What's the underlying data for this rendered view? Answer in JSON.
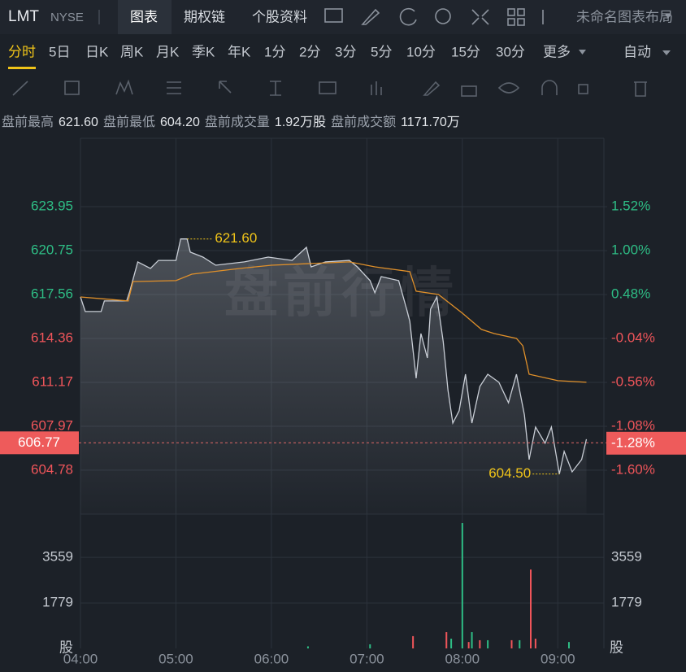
{
  "toolbar": {
    "symbol": "LMT",
    "exchange": "NYSE",
    "tabs": [
      "图表",
      "期权链",
      "个股资料"
    ],
    "layout_name": "未命名图表布局"
  },
  "periods": {
    "items": [
      "分时",
      "5日",
      "日K",
      "周K",
      "月K",
      "季K",
      "年K",
      "1分",
      "2分",
      "3分",
      "5分",
      "10分",
      "15分",
      "30分",
      "更多"
    ],
    "active": 0,
    "mode": "自动"
  },
  "stats": [
    {
      "label": "盘前最高",
      "value": "621.60"
    },
    {
      "label": "盘前最低",
      "value": "604.20"
    },
    {
      "label": "盘前成交量",
      "value": "1.92万股"
    },
    {
      "label": "盘前成交额",
      "value": "1171.70万"
    }
  ],
  "chart_data": {
    "type": "line",
    "watermark": "盘前行情",
    "xlim": [
      "04:00",
      "09:30"
    ],
    "xticks": [
      "04:00",
      "05:00",
      "06:00",
      "07:00",
      "08:00",
      "09:00"
    ],
    "ylim": [
      601.58,
      628.92
    ],
    "yticks": [
      623.95,
      620.75,
      617.56,
      614.36,
      611.17,
      607.97,
      604.78
    ],
    "y2lim": [
      -2.12,
      2.33
    ],
    "y2ticks": [
      {
        "value": 1.52,
        "label": "1.52%"
      },
      {
        "value": 1.0,
        "label": "1.00%"
      },
      {
        "value": 0.48,
        "label": "0.48%"
      },
      {
        "value": -0.04,
        "label": "-0.04%"
      },
      {
        "value": -0.56,
        "label": "-0.56%"
      },
      {
        "value": -1.08,
        "label": "-1.08%"
      },
      {
        "value": -1.6,
        "label": "-1.60%"
      }
    ],
    "up_color": "#2ebd85",
    "down_color": "#f0555a",
    "series": [
      {
        "color": "#c9ced6",
        "x": [
          "04:00",
          "04:03",
          "04:13",
          "04:15",
          "04:29",
          "04:31",
          "04:36",
          "04:44",
          "04:49",
          "05:00",
          "05:03",
          "05:07",
          "05:09",
          "05:17",
          "05:25",
          "05:43",
          "05:58",
          "06:13",
          "06:22",
          "06:25",
          "06:34",
          "06:49",
          "06:54",
          "07:02",
          "07:05",
          "07:09",
          "07:20",
          "07:25",
          "07:27",
          "07:31",
          "07:34",
          "07:38",
          "07:40",
          "07:44",
          "07:48",
          "07:51",
          "07:54",
          "07:58",
          "08:02",
          "08:06",
          "08:11",
          "08:16",
          "08:23",
          "08:29",
          "08:34",
          "08:39",
          "08:42",
          "08:46",
          "08:52",
          "08:56",
          "09:01",
          "09:04",
          "09:09",
          "09:15",
          "09:18"
        ],
        "values": [
          617.38,
          616.32,
          616.32,
          617.09,
          617.09,
          617.8,
          619.93,
          619.45,
          620.04,
          620.04,
          621.6,
          621.6,
          620.64,
          620.28,
          619.69,
          619.93,
          620.28,
          620.04,
          620.99,
          619.57,
          619.93,
          620.04,
          619.57,
          618.57,
          617.68,
          618.86,
          618.57,
          616.49,
          615.61,
          611.47,
          614.72,
          612.94,
          616.49,
          617.38,
          614.13,
          610.58,
          608.21,
          609.1,
          611.76,
          608.21,
          610.87,
          611.76,
          611.17,
          609.69,
          611.76,
          608.8,
          605.55,
          607.92,
          606.74,
          607.92,
          604.5,
          606.14,
          604.66,
          605.55,
          607.03
        ]
      },
      {
        "color": "#e0902a",
        "x": [
          "04:00",
          "04:30",
          "04:33",
          "05:00",
          "05:10",
          "05:40",
          "06:00",
          "06:49",
          "07:05",
          "07:27",
          "07:31",
          "07:45",
          "08:00",
          "08:12",
          "08:20",
          "08:34",
          "08:38",
          "08:42",
          "09:00",
          "09:18"
        ],
        "values": [
          617.38,
          617.09,
          618.5,
          618.57,
          619.04,
          619.45,
          619.69,
          619.93,
          619.57,
          619.22,
          617.8,
          617.56,
          616.2,
          615.02,
          614.72,
          614.36,
          613.83,
          611.76,
          611.29,
          611.17
        ]
      }
    ],
    "last": 606.77,
    "last_change": {
      "value": -1.28,
      "label": "-1.28%"
    },
    "high": {
      "x": "05:03",
      "value": 621.6,
      "label": "621.60"
    },
    "low": {
      "x": "09:01",
      "value": 604.5,
      "label": "604.50"
    },
    "volume": {
      "ylim": [
        0,
        5250
      ],
      "yticks": [
        3559,
        1779
      ],
      "unit": "股",
      "x": [
        "06:23",
        "07:02",
        "07:29",
        "07:50",
        "07:53",
        "08:00",
        "08:04",
        "08:06",
        "08:11",
        "08:16",
        "08:31",
        "08:36",
        "08:43",
        "08:46",
        "09:07"
      ],
      "values": [
        80,
        160,
        480,
        636,
        380,
        4900,
        250,
        636,
        320,
        320,
        320,
        320,
        3085,
        380,
        250
      ],
      "colors": [
        "#2ebd85",
        "#2ebd85",
        "#f0555a",
        "#f0555a",
        "#2ebd85",
        "#2ebd85",
        "#f0555a",
        "#2ebd85",
        "#f0555a",
        "#2ebd85",
        "#f0555a",
        "#2ebd85",
        "#f0555a",
        "#f0555a",
        "#2ebd85"
      ]
    }
  }
}
